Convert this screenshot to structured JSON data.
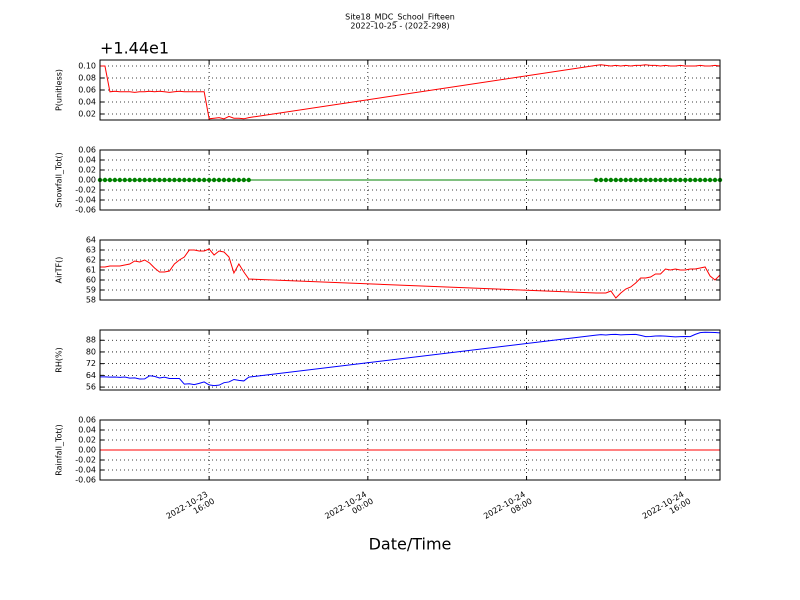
{
  "chart_data": {
    "type": "line",
    "title": "Site18_MDC_School_Fifteen",
    "subtitle": "2022-10-25 - (2022-298)",
    "xlabel": "Date/Time",
    "grid": true,
    "x": [
      "2022-10-23 10:30",
      "2022-10-23 10:45",
      "2022-10-23 11:00",
      "2022-10-23 11:15",
      "2022-10-23 11:30",
      "2022-10-23 11:45",
      "2022-10-23 12:00",
      "2022-10-23 12:15",
      "2022-10-23 12:30",
      "2022-10-23 12:45",
      "2022-10-23 13:00",
      "2022-10-23 13:15",
      "2022-10-23 13:30",
      "2022-10-23 13:45",
      "2022-10-23 14:00",
      "2022-10-23 14:15",
      "2022-10-23 14:30",
      "2022-10-23 14:45",
      "2022-10-23 15:00",
      "2022-10-23 15:15",
      "2022-10-23 15:30",
      "2022-10-23 15:45",
      "2022-10-23 16:00",
      "2022-10-23 16:15",
      "2022-10-23 16:30",
      "2022-10-23 16:45",
      "2022-10-23 17:00",
      "2022-10-23 17:15",
      "2022-10-23 17:30",
      "2022-10-23 17:45",
      "2022-10-23 18:00",
      "2022-10-24 11:30",
      "2022-10-24 11:45",
      "2022-10-24 12:00",
      "2022-10-24 12:15",
      "2022-10-24 12:30",
      "2022-10-24 12:45",
      "2022-10-24 13:00",
      "2022-10-24 13:15",
      "2022-10-24 13:30",
      "2022-10-24 13:45",
      "2022-10-24 14:00",
      "2022-10-24 14:15",
      "2022-10-24 14:30",
      "2022-10-24 14:45",
      "2022-10-24 15:00",
      "2022-10-24 15:15",
      "2022-10-24 15:30",
      "2022-10-24 15:45",
      "2022-10-24 16:00",
      "2022-10-24 16:15",
      "2022-10-24 16:30",
      "2022-10-24 16:45",
      "2022-10-24 17:00",
      "2022-10-24 17:15",
      "2022-10-24 17:30",
      "2022-10-24 17:45"
    ],
    "xlim": [
      "2022-10-23 10:30",
      "2022-10-24 17:45"
    ],
    "xticks": [
      "2022-10-23 16:00",
      "2022-10-24 00:00",
      "2022-10-24 08:00",
      "2022-10-24 16:00"
    ],
    "panels": [
      {
        "ylabel": "P(unitless)",
        "offset_text": "+1.44e1",
        "color": "#ff0000",
        "ylim": [
          0.01,
          0.11
        ],
        "yticks": [
          0.02,
          0.04,
          0.06,
          0.08,
          {
            "value": 0.1,
            "label": "0.10"
          }
        ],
        "values": [
          0.1,
          0.1,
          0.057,
          0.058,
          0.057,
          0.057,
          0.057,
          0.056,
          0.057,
          0.057,
          0.058,
          0.057,
          0.058,
          0.057,
          0.056,
          0.057,
          0.058,
          0.057,
          0.057,
          0.057,
          0.057,
          0.057,
          0.012,
          0.013,
          0.014,
          0.012,
          0.016,
          0.013,
          0.013,
          0.012,
          0.014,
          0.101,
          0.102,
          0.101,
          0.1,
          0.101,
          0.1,
          0.101,
          0.1,
          0.101,
          0.101,
          0.102,
          0.101,
          0.101,
          0.1,
          0.101,
          0.1,
          0.1,
          0.101,
          0.1,
          0.1,
          0.1,
          0.101,
          0.1,
          0.1,
          0.101,
          0.1
        ]
      },
      {
        "ylabel": "Snowfall_Tot()",
        "color": "#008000",
        "marker": "o",
        "ylim": [
          -0.06,
          0.06
        ],
        "yticks": [
          -0.06,
          -0.04,
          -0.02,
          {
            "value": 0,
            "label": "0.00"
          },
          0.02,
          0.04,
          0.06
        ],
        "values": [
          0,
          0,
          0,
          0,
          0,
          0,
          0,
          0,
          0,
          0,
          0,
          0,
          0,
          0,
          0,
          0,
          0,
          0,
          0,
          0,
          0,
          0,
          0,
          0,
          0,
          0,
          0,
          0,
          0,
          0,
          0,
          0,
          0,
          0,
          0,
          0,
          0,
          0,
          0,
          0,
          0,
          0,
          0,
          0,
          0,
          0,
          0,
          0,
          0,
          0,
          0,
          0,
          0,
          0,
          0,
          0,
          0
        ]
      },
      {
        "ylabel": "AirTF()",
        "color": "#ff0000",
        "ylim": [
          58,
          64
        ],
        "yticks": [
          58,
          59,
          60,
          61,
          62,
          63,
          64
        ],
        "values": [
          61.3,
          61.3,
          61.4,
          61.4,
          61.4,
          61.5,
          61.6,
          61.9,
          61.8,
          62.0,
          61.7,
          61.2,
          60.8,
          60.8,
          60.9,
          61.6,
          62.0,
          62.3,
          63.0,
          63.0,
          62.9,
          62.9,
          63.1,
          62.5,
          62.9,
          62.8,
          62.3,
          60.7,
          61.6,
          60.8,
          60.1,
          58.7,
          58.7,
          58.7,
          58.9,
          58.2,
          58.7,
          59.1,
          59.3,
          59.7,
          60.2,
          60.2,
          60.3,
          60.6,
          60.6,
          61.1,
          61.0,
          61.1,
          61.0,
          61.0,
          61.1,
          61.1,
          61.2,
          61.3,
          60.4,
          60.0,
          60.5
        ]
      },
      {
        "ylabel": "RH(%)",
        "color": "#0000ff",
        "ylim": [
          54,
          95
        ],
        "yticks": [
          56,
          64,
          72,
          80,
          88
        ],
        "values": [
          63.0,
          63.0,
          62.8,
          62.9,
          62.6,
          62.9,
          62.1,
          62.3,
          61.5,
          61.6,
          63.7,
          63.3,
          62.2,
          62.8,
          61.9,
          61.9,
          61.9,
          58.0,
          58.3,
          57.7,
          58.5,
          59.5,
          57.5,
          57.0,
          57.3,
          59.0,
          59.5,
          61.2,
          60.6,
          60.2,
          62.8,
          91.5,
          91.8,
          91.6,
          91.9,
          92.0,
          91.7,
          91.8,
          91.9,
          92.0,
          91.3,
          90.5,
          90.6,
          90.9,
          91.0,
          90.8,
          90.6,
          90.3,
          90.5,
          90.6,
          90.5,
          92.0,
          93.2,
          93.5,
          93.4,
          93.3,
          93.0
        ]
      },
      {
        "ylabel": "Rainfall_Tot()",
        "color": "#ff0000",
        "ylim": [
          -0.06,
          0.06
        ],
        "yticks": [
          -0.06,
          -0.04,
          -0.02,
          {
            "value": 0,
            "label": "0.00"
          },
          0.02,
          0.04,
          0.06
        ],
        "values": [
          0,
          0,
          0,
          0,
          0,
          0,
          0,
          0,
          0,
          0,
          0,
          0,
          0,
          0,
          0,
          0,
          0,
          0,
          0,
          0,
          0,
          0,
          0,
          0,
          0,
          0,
          0,
          0,
          0,
          0,
          0,
          0,
          0,
          0,
          0,
          0,
          0,
          0,
          0,
          0,
          0,
          0,
          0,
          0,
          0,
          0,
          0,
          0,
          0,
          0,
          0,
          0,
          0,
          0,
          0,
          0,
          0
        ]
      }
    ]
  }
}
